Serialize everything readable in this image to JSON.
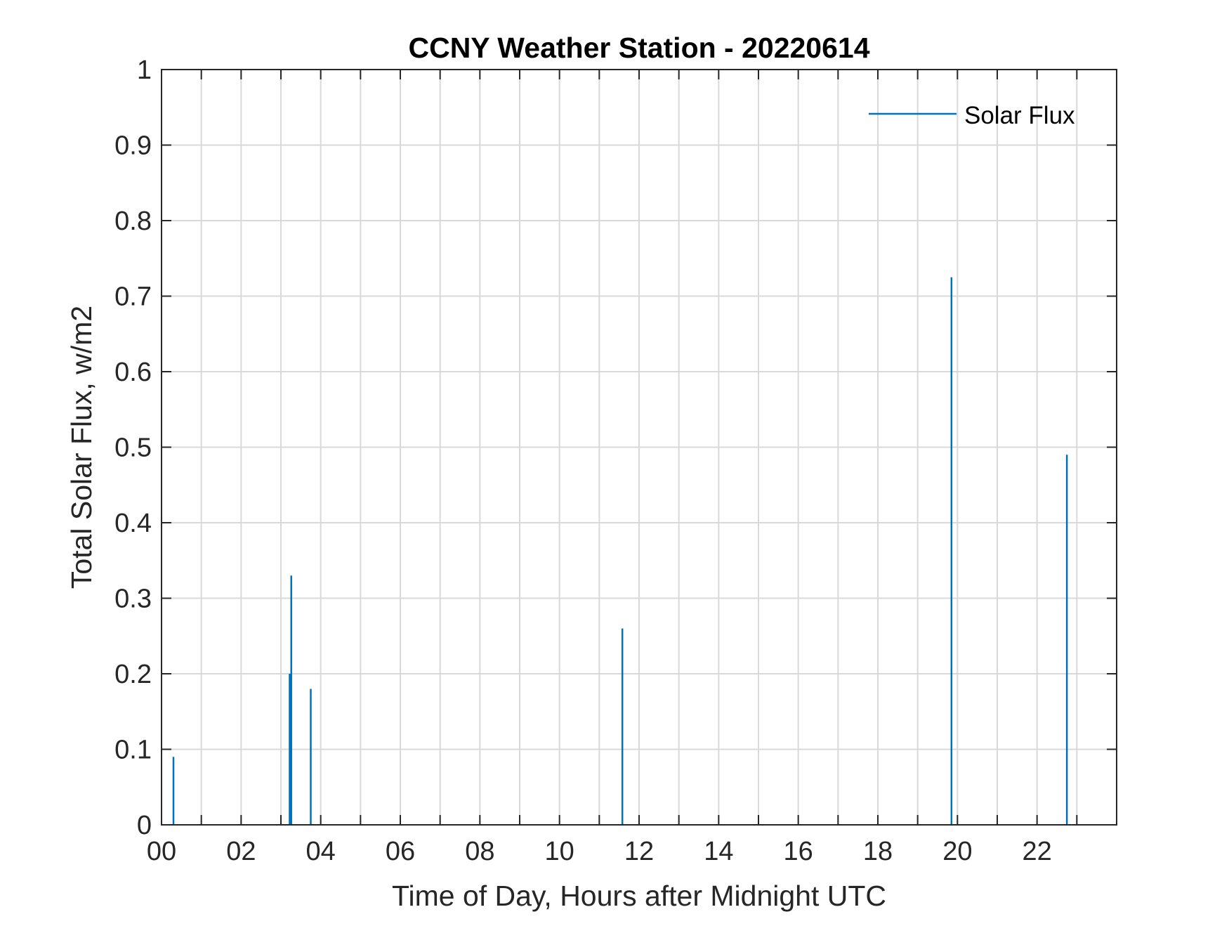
{
  "chart_data": {
    "type": "line",
    "title": "CCNY Weather Station - 20220614",
    "xlabel": "Time of Day, Hours after Midnight UTC",
    "ylabel": "Total Solar Flux, w/m2",
    "xlim": [
      0,
      24
    ],
    "ylim": [
      0,
      1
    ],
    "grid": true,
    "legend_position": "top-right",
    "x_ticks": [
      0,
      2,
      4,
      6,
      8,
      10,
      12,
      14,
      16,
      18,
      20,
      22
    ],
    "x_tick_labels": [
      "00",
      "02",
      "04",
      "06",
      "08",
      "10",
      "12",
      "14",
      "16",
      "18",
      "20",
      "22"
    ],
    "x_minor_grid_step": 1,
    "y_ticks": [
      0,
      0.1,
      0.2,
      0.3,
      0.4,
      0.5,
      0.6,
      0.7,
      0.8,
      0.9,
      1
    ],
    "y_tick_labels": [
      "0",
      "0.1",
      "0.2",
      "0.3",
      "0.4",
      "0.5",
      "0.6",
      "0.7",
      "0.8",
      "0.9",
      "1"
    ],
    "series": [
      {
        "name": "Solar Flux",
        "color": "#0072BD",
        "spikes": [
          {
            "x": 0.3,
            "y": 0.09
          },
          {
            "x": 3.22,
            "y": 0.2
          },
          {
            "x": 3.26,
            "y": 0.33
          },
          {
            "x": 3.75,
            "y": 0.18
          },
          {
            "x": 11.58,
            "y": 0.26
          },
          {
            "x": 19.85,
            "y": 0.725
          },
          {
            "x": 22.75,
            "y": 0.49
          }
        ]
      }
    ]
  }
}
